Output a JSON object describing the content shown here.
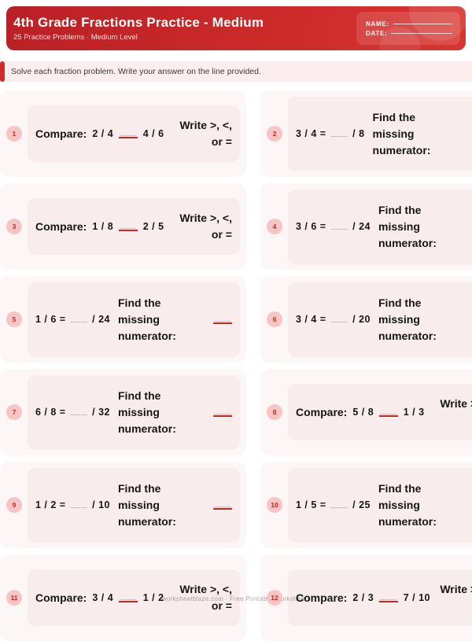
{
  "header": {
    "title": "4th Grade Fractions Practice - Medium",
    "subtitle": "25 Practice Problems · Medium Level",
    "name_label": "NAME:",
    "date_label": "DATE:"
  },
  "instructions": {
    "text": "Solve each fraction problem. Write your answer on the line provided."
  },
  "problems": [
    {
      "num": "1",
      "kind": "compare",
      "label": "Compare:",
      "frac1": "2 / 4",
      "blank": "___",
      "frac2": "4 / 6",
      "hint": "Write >, <, or ="
    },
    {
      "num": "2",
      "kind": "missing",
      "eq_left": "3 / 4 =",
      "blank": "___",
      "eq_right": "/ 8",
      "hint": "Find the missing numerator:"
    },
    {
      "num": "3",
      "kind": "compare",
      "label": "Compare:",
      "frac1": "1 / 8",
      "blank": "___",
      "frac2": "2 / 5",
      "hint": "Write >, <, or ="
    },
    {
      "num": "4",
      "kind": "missing",
      "eq_left": "3 / 6 =",
      "blank": "___",
      "eq_right": "/ 24",
      "hint": "Find the missing numerator:"
    },
    {
      "num": "5",
      "kind": "missing",
      "eq_left": "1 / 6 =",
      "blank": "___",
      "eq_right": "/ 24",
      "hint": "Find the missing numerator:"
    },
    {
      "num": "6",
      "kind": "missing",
      "eq_left": "3 / 4 =",
      "blank": "___",
      "eq_right": "/ 20",
      "hint": "Find the missing numerator:"
    },
    {
      "num": "7",
      "kind": "missing",
      "eq_left": "6 / 8 =",
      "blank": "___",
      "eq_right": "/ 32",
      "hint": "Find the missing numerator:"
    },
    {
      "num": "8",
      "kind": "compare",
      "label": "Compare:",
      "frac1": "5 / 8",
      "blank": "___",
      "frac2": "1 / 3",
      "hint": "Write >, <, or ="
    },
    {
      "num": "9",
      "kind": "missing",
      "eq_left": "1 / 2 =",
      "blank": "___",
      "eq_right": "/ 10",
      "hint": "Find the missing numerator:"
    },
    {
      "num": "10",
      "kind": "missing",
      "eq_left": "1 / 5 =",
      "blank": "___",
      "eq_right": "/ 25",
      "hint": "Find the missing numerator:"
    },
    {
      "num": "11",
      "kind": "compare",
      "label": "Compare:",
      "frac1": "3 / 4",
      "blank": "___",
      "frac2": "1 / 2",
      "hint": "Write >, <, or ="
    },
    {
      "num": "12",
      "kind": "compare",
      "label": "Compare:",
      "frac1": "2 / 3",
      "blank": "___",
      "frac2": "7 / 10",
      "hint": "Write >, <, or ="
    }
  ],
  "watermark": {
    "text": "worksheetblaze.com · Free Printable Worksheets"
  },
  "colors": {
    "header_red_dark": "#b92025",
    "header_red_bright": "#d93530",
    "accent_red": "#cf2b2b",
    "section_bg": "#fdf6f6",
    "card_bg": "#f8ecec",
    "badge_bg": "#f8c5c5",
    "badge_text": "#c62626",
    "blank_gray": "#8f8f8f",
    "blank_red_line": "#c92525",
    "instruction_bg": "#fceeee",
    "watermark_gray": "#b3abab"
  }
}
